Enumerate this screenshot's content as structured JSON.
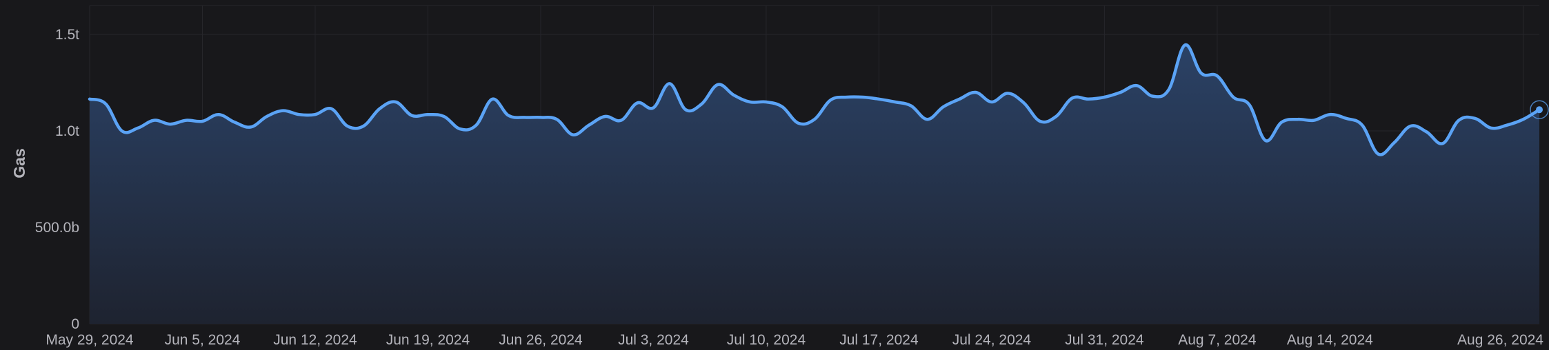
{
  "chart_data": {
    "type": "area",
    "title": "",
    "xlabel": "",
    "ylabel": "Gas",
    "ylim": [
      0,
      1650
    ],
    "y_unit": "billions of gas",
    "y_ticks": [
      {
        "value": 0,
        "label": "0"
      },
      {
        "value": 500,
        "label": "500.0b"
      },
      {
        "value": 1000,
        "label": "1.0t"
      },
      {
        "value": 1500,
        "label": "1.5t"
      }
    ],
    "x_ticks": [
      {
        "date": "2024-05-29",
        "label": "May 29, 2024"
      },
      {
        "date": "2024-06-05",
        "label": "Jun 5, 2024"
      },
      {
        "date": "2024-06-12",
        "label": "Jun 12, 2024"
      },
      {
        "date": "2024-06-19",
        "label": "Jun 19, 2024"
      },
      {
        "date": "2024-06-26",
        "label": "Jun 26, 2024"
      },
      {
        "date": "2024-07-03",
        "label": "Jul 3, 2024"
      },
      {
        "date": "2024-07-10",
        "label": "Jul 10, 2024"
      },
      {
        "date": "2024-07-17",
        "label": "Jul 17, 2024"
      },
      {
        "date": "2024-07-24",
        "label": "Jul 24, 2024"
      },
      {
        "date": "2024-07-31",
        "label": "Jul 31, 2024"
      },
      {
        "date": "2024-08-07",
        "label": "Aug 7, 2024"
      },
      {
        "date": "2024-08-14",
        "label": "Aug 14, 2024"
      },
      {
        "date": "2024-08-26",
        "label": "Aug 26, 2024"
      }
    ],
    "grid": true,
    "legend": "none",
    "colors": {
      "line": "#5ba3f5",
      "fill_top": "#2b4266",
      "fill_bottom": "#1e2330",
      "background": "#18181b"
    },
    "series": [
      {
        "points": [
          [
            "2024-05-29",
            1165
          ],
          [
            "2024-05-30",
            1140
          ],
          [
            "2024-05-31",
            1000
          ],
          [
            "2024-06-01",
            1015
          ],
          [
            "2024-06-02",
            1055
          ],
          [
            "2024-06-03",
            1035
          ],
          [
            "2024-06-04",
            1055
          ],
          [
            "2024-06-05",
            1050
          ],
          [
            "2024-06-06",
            1085
          ],
          [
            "2024-06-07",
            1045
          ],
          [
            "2024-06-08",
            1020
          ],
          [
            "2024-06-09",
            1075
          ],
          [
            "2024-06-10",
            1105
          ],
          [
            "2024-06-11",
            1085
          ],
          [
            "2024-06-12",
            1085
          ],
          [
            "2024-06-13",
            1115
          ],
          [
            "2024-06-14",
            1025
          ],
          [
            "2024-06-15",
            1025
          ],
          [
            "2024-06-16",
            1115
          ],
          [
            "2024-06-17",
            1150
          ],
          [
            "2024-06-18",
            1080
          ],
          [
            "2024-06-19",
            1085
          ],
          [
            "2024-06-20",
            1075
          ],
          [
            "2024-06-21",
            1010
          ],
          [
            "2024-06-22",
            1030
          ],
          [
            "2024-06-23",
            1165
          ],
          [
            "2024-06-24",
            1080
          ],
          [
            "2024-06-25",
            1070
          ],
          [
            "2024-06-26",
            1070
          ],
          [
            "2024-06-27",
            1060
          ],
          [
            "2024-06-28",
            980
          ],
          [
            "2024-06-29",
            1030
          ],
          [
            "2024-06-30",
            1075
          ],
          [
            "2024-07-01",
            1055
          ],
          [
            "2024-07-02",
            1145
          ],
          [
            "2024-07-03",
            1120
          ],
          [
            "2024-07-04",
            1245
          ],
          [
            "2024-07-05",
            1110
          ],
          [
            "2024-07-06",
            1140
          ],
          [
            "2024-07-07",
            1240
          ],
          [
            "2024-07-08",
            1185
          ],
          [
            "2024-07-09",
            1150
          ],
          [
            "2024-07-10",
            1150
          ],
          [
            "2024-07-11",
            1125
          ],
          [
            "2024-07-12",
            1040
          ],
          [
            "2024-07-13",
            1060
          ],
          [
            "2024-07-14",
            1160
          ],
          [
            "2024-07-15",
            1175
          ],
          [
            "2024-07-16",
            1175
          ],
          [
            "2024-07-17",
            1165
          ],
          [
            "2024-07-18",
            1150
          ],
          [
            "2024-07-19",
            1130
          ],
          [
            "2024-07-20",
            1060
          ],
          [
            "2024-07-21",
            1125
          ],
          [
            "2024-07-22",
            1165
          ],
          [
            "2024-07-23",
            1200
          ],
          [
            "2024-07-24",
            1150
          ],
          [
            "2024-07-25",
            1195
          ],
          [
            "2024-07-26",
            1145
          ],
          [
            "2024-07-27",
            1050
          ],
          [
            "2024-07-28",
            1075
          ],
          [
            "2024-07-29",
            1170
          ],
          [
            "2024-07-30",
            1165
          ],
          [
            "2024-07-31",
            1175
          ],
          [
            "2024-08-01",
            1200
          ],
          [
            "2024-08-02",
            1235
          ],
          [
            "2024-08-03",
            1180
          ],
          [
            "2024-08-04",
            1215
          ],
          [
            "2024-08-05",
            1445
          ],
          [
            "2024-08-06",
            1300
          ],
          [
            "2024-08-07",
            1285
          ],
          [
            "2024-08-08",
            1175
          ],
          [
            "2024-08-09",
            1135
          ],
          [
            "2024-08-10",
            950
          ],
          [
            "2024-08-11",
            1045
          ],
          [
            "2024-08-12",
            1060
          ],
          [
            "2024-08-13",
            1055
          ],
          [
            "2024-08-14",
            1085
          ],
          [
            "2024-08-15",
            1065
          ],
          [
            "2024-08-16",
            1030
          ],
          [
            "2024-08-17",
            880
          ],
          [
            "2024-08-18",
            940
          ],
          [
            "2024-08-19",
            1025
          ],
          [
            "2024-08-20",
            995
          ],
          [
            "2024-08-21",
            935
          ],
          [
            "2024-08-22",
            1055
          ],
          [
            "2024-08-23",
            1065
          ],
          [
            "2024-08-24",
            1015
          ],
          [
            "2024-08-25",
            1030
          ],
          [
            "2024-08-26",
            1060
          ],
          [
            "2024-08-27",
            1110
          ]
        ]
      }
    ]
  }
}
